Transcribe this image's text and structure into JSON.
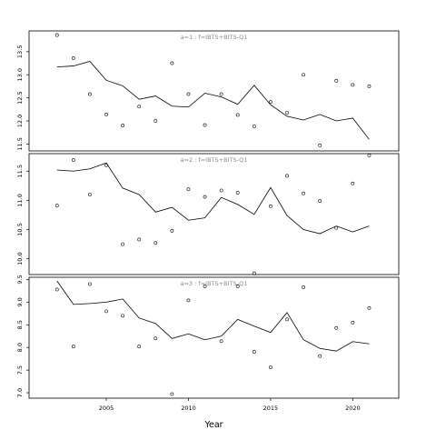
{
  "chart_data": {
    "type": "line",
    "xlabel": "Year",
    "xlim": [
      2000.3,
      2022.8
    ],
    "x_ticks": [
      2005,
      2010,
      2015,
      2020
    ],
    "x": [
      2002,
      2003,
      2004,
      2005,
      2006,
      2007,
      2008,
      2009,
      2010,
      2011,
      2012,
      2013,
      2014,
      2015,
      2016,
      2017,
      2018,
      2019,
      2020,
      2021
    ],
    "panels": [
      {
        "title": "a=1 : f=IBTS+BITS-Q1",
        "ylim": [
          11.35,
          13.95
        ],
        "y_ticks": [
          11.5,
          12.0,
          12.5,
          13.0,
          13.5
        ],
        "fitted": [
          13.17,
          13.19,
          13.29,
          12.88,
          12.76,
          12.47,
          12.54,
          12.32,
          12.3,
          12.6,
          12.52,
          12.36,
          12.77,
          12.35,
          12.1,
          12.02,
          12.14,
          12.0,
          12.06,
          11.6
        ],
        "observed": [
          13.86,
          13.36,
          12.58,
          12.14,
          11.9,
          12.31,
          12.0,
          13.25,
          12.58,
          11.91,
          12.58,
          12.13,
          11.88,
          12.41,
          12.18,
          13.0,
          11.47,
          12.87,
          12.78,
          12.75
        ]
      },
      {
        "title": "a=2 : f=IBTS+BITS-Q1",
        "ylim": [
          9.73,
          11.8
        ],
        "y_ticks": [
          10.0,
          10.5,
          11.0,
          11.5
        ],
        "fitted": [
          11.52,
          11.5,
          11.54,
          11.64,
          11.21,
          11.1,
          10.8,
          10.88,
          10.66,
          10.7,
          11.05,
          10.93,
          10.76,
          11.22,
          10.74,
          10.5,
          10.43,
          10.56,
          10.46,
          10.56
        ],
        "observed": [
          10.91,
          11.69,
          11.1,
          11.6,
          10.25,
          10.33,
          10.27,
          10.48,
          11.19,
          11.06,
          11.17,
          11.13,
          9.75,
          10.9,
          11.42,
          11.12,
          10.99,
          10.53,
          11.29,
          11.77
        ]
      },
      {
        "title": "a=3 : f=IBTS+BITS-Q1",
        "ylim": [
          6.88,
          9.55
        ],
        "y_ticks": [
          7.0,
          7.5,
          8.0,
          8.5,
          9.0,
          9.5
        ],
        "fitted": [
          9.47,
          8.95,
          8.97,
          9.0,
          9.07,
          8.65,
          8.53,
          8.2,
          8.3,
          8.17,
          8.25,
          8.62,
          8.47,
          8.33,
          8.77,
          8.17,
          7.98,
          7.92,
          8.13,
          8.08
        ],
        "observed": [
          9.28,
          8.02,
          9.4,
          8.8,
          8.7,
          8.02,
          8.2,
          6.97,
          9.04,
          9.35,
          8.14,
          9.35,
          7.9,
          7.56,
          8.62,
          9.33,
          7.81,
          8.43,
          8.55,
          8.87
        ]
      }
    ]
  }
}
